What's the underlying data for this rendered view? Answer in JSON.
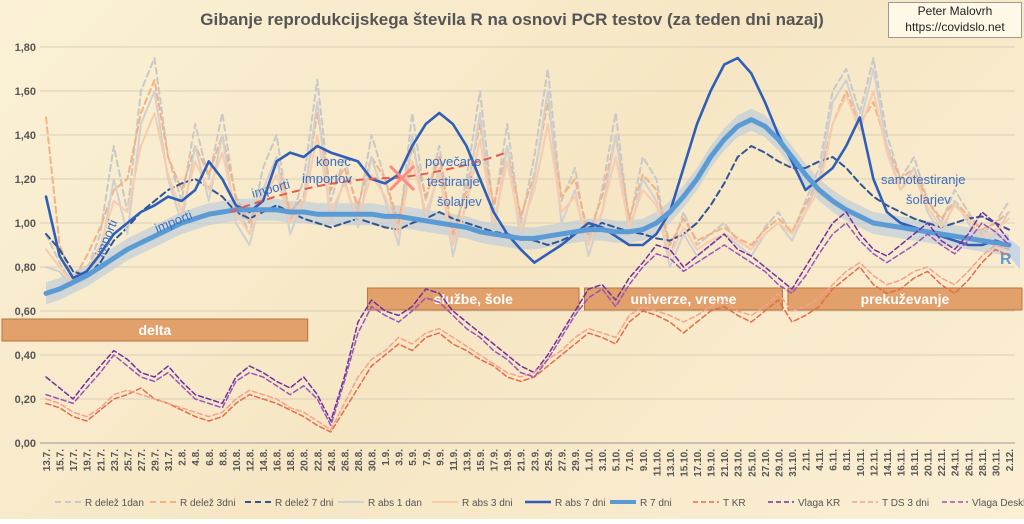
{
  "credit": {
    "author": "Peter Malovrh",
    "site": "https://covidslo.net"
  },
  "chart_data": {
    "type": "line",
    "title": "Gibanje reprodukcijskega števila R na osnovi PCR testov (za teden dni nazaj)",
    "ylim": [
      0,
      1.8
    ],
    "yticks": [
      "0,00",
      "0,20",
      "0,40",
      "0,60",
      "0,80",
      "1,00",
      "1,20",
      "1,40",
      "1,60",
      "1,80"
    ],
    "x_labels": [
      "13.7.",
      "15.7.",
      "17.7.",
      "19.7.",
      "21.7.",
      "23.7.",
      "25.7.",
      "27.7.",
      "29.7.",
      "31.7.",
      "2.8.",
      "4.8.",
      "6.8.",
      "8.8.",
      "10.8.",
      "12.8.",
      "14.8.",
      "16.8.",
      "18.8.",
      "20.8.",
      "22.8.",
      "24.8.",
      "26.8.",
      "28.8.",
      "30.8.",
      "1.9.",
      "3.9.",
      "5.9.",
      "7.9.",
      "9.9.",
      "11.9.",
      "13.9.",
      "15.9.",
      "17.9.",
      "19.9.",
      "21.9.",
      "23.9.",
      "25.9.",
      "27.9.",
      "29.9.",
      "1.10.",
      "3.10.",
      "5.10.",
      "7.10.",
      "9.10.",
      "11.10.",
      "13.10.",
      "15.10.",
      "17.10.",
      "19.10.",
      "21.10.",
      "23.10.",
      "25.10.",
      "27.10.",
      "29.10.",
      "31.10.",
      "2.11.",
      "4.11.",
      "6.11.",
      "8.11.",
      "10.11.",
      "12.11.",
      "14.11.",
      "16.11.",
      "18.11.",
      "20.11.",
      "22.11.",
      "24.11.",
      "26.11.",
      "28.11.",
      "30.11.",
      "2.12."
    ],
    "series": [
      {
        "name": "R delež 1dan",
        "color": "#c8c8c8",
        "dash": "6,4",
        "width": 2,
        "values": [
          0.95,
          0.82,
          0.72,
          0.78,
          0.95,
          1.35,
          1.05,
          1.6,
          1.75,
          1.3,
          1.1,
          1.45,
          1.2,
          1.5,
          1.1,
          0.95,
          1.25,
          1.4,
          1.0,
          1.2,
          1.65,
          1.1,
          1.3,
          1.05,
          1.4,
          1.2,
          0.95,
          1.5,
          1.1,
          1.35,
          0.9,
          1.2,
          1.6,
          1.05,
          1.45,
          1.0,
          1.3,
          1.7,
          1.1,
          1.25,
          0.9,
          1.15,
          1.5,
          1.0,
          1.3,
          1.2,
          0.85,
          1.05,
          0.9,
          0.95,
          1.0,
          0.92,
          0.88,
          0.98,
          1.05,
          0.95,
          1.1,
          1.25,
          1.6,
          1.7,
          1.5,
          1.75,
          1.4,
          1.2,
          1.3,
          1.1,
          1.0,
          1.15,
          1.05,
          0.95,
          1.0,
          1.1
        ]
      },
      {
        "name": "R delež 3dni",
        "color": "#f4b183",
        "dash": "6,4",
        "width": 2,
        "values": [
          1.48,
          0.9,
          0.74,
          0.85,
          0.98,
          1.15,
          1.2,
          1.5,
          1.65,
          1.3,
          1.15,
          1.35,
          1.22,
          1.4,
          1.12,
          1.0,
          1.15,
          1.3,
          1.05,
          1.12,
          1.5,
          1.15,
          1.25,
          1.08,
          1.3,
          1.2,
          1.0,
          1.35,
          1.12,
          1.3,
          0.95,
          1.15,
          1.45,
          1.08,
          1.35,
          1.03,
          1.22,
          1.55,
          1.12,
          1.2,
          0.95,
          1.12,
          1.4,
          1.02,
          1.22,
          1.15,
          0.9,
          1.02,
          0.92,
          0.95,
          0.98,
          0.93,
          0.9,
          0.97,
          1.02,
          0.96,
          1.08,
          1.2,
          1.45,
          1.6,
          1.45,
          1.55,
          1.35,
          1.2,
          1.25,
          1.1,
          1.02,
          1.1,
          1.03,
          0.97,
          1.0,
          1.05
        ]
      },
      {
        "name": "R delež 7 dni",
        "color": "#2f5597",
        "dash": "6,4",
        "width": 2,
        "values": [
          0.95,
          0.88,
          0.78,
          0.76,
          0.82,
          0.92,
          0.98,
          1.05,
          1.1,
          1.15,
          1.18,
          1.2,
          1.16,
          1.12,
          1.05,
          1.02,
          1.05,
          1.08,
          1.05,
          1.02,
          1.0,
          0.98,
          1.0,
          1.02,
          1.0,
          0.98,
          0.97,
          1.0,
          1.02,
          1.05,
          1.02,
          1.0,
          0.98,
          0.96,
          0.95,
          0.93,
          0.92,
          0.9,
          0.92,
          0.95,
          0.98,
          1.0,
          0.98,
          0.96,
          0.95,
          0.93,
          0.92,
          0.95,
          1.0,
          1.08,
          1.18,
          1.3,
          1.35,
          1.32,
          1.28,
          1.25,
          1.25,
          1.28,
          1.3,
          1.25,
          1.18,
          1.12,
          1.08,
          1.05,
          1.02,
          1.0,
          0.98,
          1.0,
          1.02,
          1.03,
          1.0,
          0.97
        ]
      },
      {
        "name": "R abs 1 dan",
        "color": "#d0d0d0",
        "dash": "",
        "width": 2,
        "values": [
          0.8,
          0.78,
          0.7,
          0.75,
          0.85,
          1.2,
          0.95,
          1.45,
          1.6,
          1.2,
          1.0,
          1.35,
          1.1,
          1.4,
          1.0,
          0.9,
          1.15,
          1.3,
          0.95,
          1.1,
          1.55,
          1.0,
          1.2,
          0.98,
          1.3,
          1.1,
          0.9,
          1.4,
          1.0,
          1.25,
          0.85,
          1.1,
          1.5,
          0.95,
          1.35,
          0.92,
          1.2,
          1.6,
          1.0,
          1.15,
          0.85,
          1.05,
          1.4,
          0.95,
          1.2,
          1.1,
          0.8,
          0.95,
          0.85,
          0.9,
          0.95,
          0.9,
          0.85,
          0.95,
          1.0,
          0.92,
          1.05,
          1.2,
          1.55,
          1.65,
          1.45,
          1.7,
          1.35,
          1.15,
          1.25,
          1.05,
          0.95,
          1.1,
          1.0,
          0.9,
          0.95,
          1.05
        ]
      },
      {
        "name": "R abs 3 dni",
        "color": "#f8cbad",
        "dash": "",
        "width": 2,
        "values": [
          0.88,
          0.8,
          0.72,
          0.78,
          0.9,
          1.1,
          1.05,
          1.35,
          1.5,
          1.22,
          1.05,
          1.28,
          1.15,
          1.32,
          1.05,
          0.95,
          1.1,
          1.22,
          1.0,
          1.08,
          1.4,
          1.05,
          1.18,
          1.02,
          1.22,
          1.12,
          0.95,
          1.28,
          1.05,
          1.22,
          0.9,
          1.08,
          1.38,
          1.0,
          1.28,
          0.97,
          1.15,
          1.45,
          1.05,
          1.12,
          0.9,
          1.05,
          1.3,
          0.98,
          1.15,
          1.08,
          0.85,
          0.98,
          0.88,
          0.92,
          0.95,
          0.92,
          0.88,
          0.95,
          1.0,
          0.95,
          1.05,
          1.15,
          1.45,
          1.58,
          1.42,
          1.6,
          1.32,
          1.15,
          1.22,
          1.07,
          0.98,
          1.08,
          1.02,
          0.93,
          0.97,
          1.02
        ]
      },
      {
        "name": "R abs 7 dni",
        "color": "#2e5fb8",
        "dash": "",
        "width": 2.6,
        "values": [
          1.12,
          0.85,
          0.75,
          0.78,
          0.86,
          0.95,
          1.0,
          1.05,
          1.08,
          1.12,
          1.1,
          1.15,
          1.28,
          1.2,
          1.08,
          1.05,
          1.1,
          1.28,
          1.32,
          1.3,
          1.35,
          1.32,
          1.3,
          1.28,
          1.2,
          1.18,
          1.22,
          1.35,
          1.45,
          1.5,
          1.45,
          1.35,
          1.2,
          1.05,
          0.95,
          0.88,
          0.82,
          0.86,
          0.9,
          0.95,
          1.0,
          0.98,
          0.94,
          0.9,
          0.9,
          0.95,
          1.05,
          1.25,
          1.45,
          1.6,
          1.72,
          1.75,
          1.68,
          1.55,
          1.4,
          1.28,
          1.15,
          1.2,
          1.25,
          1.35,
          1.48,
          1.2,
          1.05,
          1.0,
          0.98,
          0.96,
          0.94,
          0.92,
          0.9,
          0.9,
          0.92,
          0.9
        ]
      },
      {
        "name": "R 7 dni",
        "color": "#5b9bd5",
        "dash": "",
        "width": 5,
        "values": [
          0.68,
          0.7,
          0.73,
          0.76,
          0.8,
          0.84,
          0.88,
          0.91,
          0.94,
          0.97,
          1.0,
          1.02,
          1.04,
          1.05,
          1.06,
          1.06,
          1.06,
          1.06,
          1.05,
          1.05,
          1.04,
          1.04,
          1.04,
          1.04,
          1.04,
          1.03,
          1.03,
          1.02,
          1.01,
          1.0,
          0.99,
          0.98,
          0.96,
          0.95,
          0.94,
          0.93,
          0.93,
          0.94,
          0.95,
          0.96,
          0.97,
          0.97,
          0.96,
          0.96,
          0.97,
          1.0,
          1.05,
          1.12,
          1.2,
          1.3,
          1.38,
          1.44,
          1.47,
          1.44,
          1.38,
          1.3,
          1.22,
          1.15,
          1.1,
          1.06,
          1.03,
          1.0,
          0.99,
          0.98,
          0.97,
          0.96,
          0.95,
          0.94,
          0.93,
          0.92,
          0.91,
          0.9
        ]
      },
      {
        "name": "T KR",
        "color": "#e46c4a",
        "dash": "5,3",
        "width": 1.5,
        "values": [
          0.18,
          0.16,
          0.12,
          0.1,
          0.15,
          0.2,
          0.22,
          0.25,
          0.2,
          0.18,
          0.15,
          0.12,
          0.1,
          0.12,
          0.18,
          0.22,
          0.2,
          0.18,
          0.15,
          0.12,
          0.08,
          0.05,
          0.15,
          0.25,
          0.35,
          0.4,
          0.45,
          0.42,
          0.48,
          0.5,
          0.45,
          0.42,
          0.38,
          0.35,
          0.3,
          0.28,
          0.3,
          0.35,
          0.4,
          0.45,
          0.5,
          0.48,
          0.45,
          0.55,
          0.6,
          0.58,
          0.55,
          0.5,
          0.55,
          0.6,
          0.62,
          0.58,
          0.55,
          0.6,
          0.65,
          0.55,
          0.58,
          0.62,
          0.7,
          0.75,
          0.8,
          0.72,
          0.68,
          0.7,
          0.75,
          0.78,
          0.72,
          0.68,
          0.74,
          0.82,
          0.88,
          0.85
        ]
      },
      {
        "name": "Vlaga KR",
        "color": "#7030a0",
        "dash": "5,3",
        "width": 1.5,
        "values": [
          0.3,
          0.25,
          0.2,
          0.28,
          0.35,
          0.42,
          0.38,
          0.32,
          0.3,
          0.35,
          0.28,
          0.22,
          0.2,
          0.18,
          0.3,
          0.35,
          0.32,
          0.28,
          0.25,
          0.3,
          0.22,
          0.1,
          0.3,
          0.55,
          0.65,
          0.6,
          0.58,
          0.62,
          0.7,
          0.68,
          0.6,
          0.55,
          0.5,
          0.45,
          0.4,
          0.35,
          0.32,
          0.4,
          0.5,
          0.6,
          0.7,
          0.72,
          0.65,
          0.75,
          0.82,
          0.9,
          0.88,
          0.8,
          0.85,
          0.9,
          0.95,
          0.88,
          0.85,
          0.8,
          0.75,
          0.7,
          0.8,
          0.9,
          1.0,
          1.05,
          0.95,
          0.88,
          0.85,
          0.9,
          0.95,
          1.0,
          0.92,
          0.88,
          0.95,
          1.05,
          1.0,
          0.92
        ]
      },
      {
        "name": "T DS 3 dni",
        "color": "#f4a28c",
        "dash": "5,3",
        "width": 1.5,
        "values": [
          0.2,
          0.18,
          0.14,
          0.12,
          0.16,
          0.22,
          0.24,
          0.22,
          0.2,
          0.18,
          0.16,
          0.14,
          0.12,
          0.14,
          0.2,
          0.24,
          0.22,
          0.2,
          0.16,
          0.14,
          0.1,
          0.06,
          0.18,
          0.3,
          0.38,
          0.42,
          0.48,
          0.45,
          0.5,
          0.52,
          0.48,
          0.44,
          0.4,
          0.36,
          0.32,
          0.3,
          0.32,
          0.38,
          0.42,
          0.48,
          0.52,
          0.5,
          0.48,
          0.58,
          0.62,
          0.6,
          0.58,
          0.55,
          0.58,
          0.62,
          0.65,
          0.6,
          0.58,
          0.62,
          0.68,
          0.6,
          0.62,
          0.66,
          0.72,
          0.78,
          0.82,
          0.76,
          0.72,
          0.74,
          0.78,
          0.8,
          0.75,
          0.72,
          0.78,
          0.85,
          0.9,
          0.88
        ]
      },
      {
        "name": "Vlaga Deskle",
        "color": "#9955bb",
        "dash": "5,3",
        "width": 1.5,
        "values": [
          0.22,
          0.2,
          0.18,
          0.25,
          0.32,
          0.4,
          0.35,
          0.3,
          0.28,
          0.32,
          0.26,
          0.2,
          0.18,
          0.16,
          0.28,
          0.32,
          0.3,
          0.26,
          0.22,
          0.26,
          0.2,
          0.08,
          0.28,
          0.5,
          0.62,
          0.58,
          0.55,
          0.6,
          0.66,
          0.64,
          0.58,
          0.52,
          0.48,
          0.42,
          0.38,
          0.32,
          0.3,
          0.38,
          0.48,
          0.58,
          0.66,
          0.7,
          0.62,
          0.72,
          0.8,
          0.86,
          0.84,
          0.78,
          0.82,
          0.86,
          0.9,
          0.86,
          0.82,
          0.78,
          0.72,
          0.68,
          0.76,
          0.86,
          0.95,
          1.0,
          0.92,
          0.86,
          0.82,
          0.86,
          0.9,
          0.95,
          0.9,
          0.86,
          0.92,
          1.0,
          0.96,
          0.9
        ]
      }
    ],
    "periods": [
      {
        "label": "delta",
        "from": "13.7.",
        "to": "20.8."
      },
      {
        "label": "službe, šole",
        "from": "30.8.",
        "to": "29.9."
      },
      {
        "label": "univerze, vreme",
        "from": "1.10.",
        "to": "29.10."
      },
      {
        "label": "prekuževanje",
        "from": "31.10.",
        "to": "2.12."
      }
    ],
    "annotations": [
      "importi",
      "importi",
      "importi",
      "konec importov",
      "povečano testiranje šolarjev",
      "samotestiranje šolarjev"
    ],
    "projection_label": "R"
  }
}
